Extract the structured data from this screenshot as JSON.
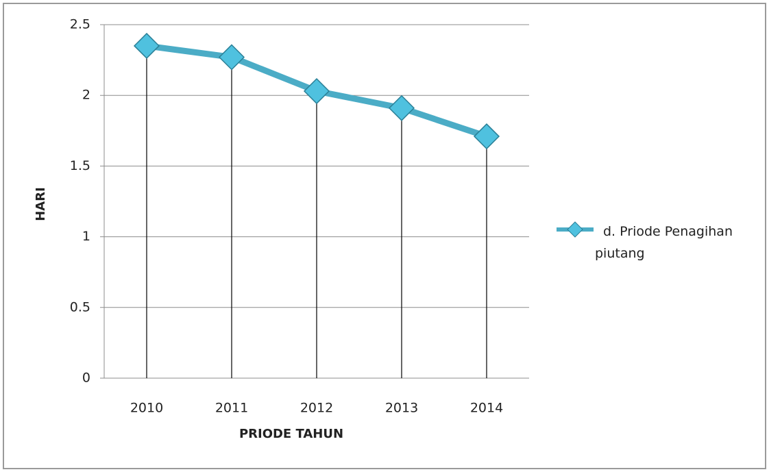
{
  "chart_data": {
    "type": "line",
    "categories": [
      "2010",
      "2011",
      "2012",
      "2013",
      "2014"
    ],
    "series": [
      {
        "name": "d. Priode Penagihan piutang",
        "color": "#4bacc6",
        "values": [
          2.35,
          2.27,
          2.03,
          1.91,
          1.71
        ]
      }
    ],
    "ylim": [
      0,
      2.5
    ],
    "yticks": [
      0,
      0.5,
      1,
      1.5,
      2,
      2.5
    ],
    "grid": true,
    "drop_lines": true,
    "xlabel": "PRIODE TAHUN",
    "ylabel": "HARI",
    "legend": "right"
  }
}
